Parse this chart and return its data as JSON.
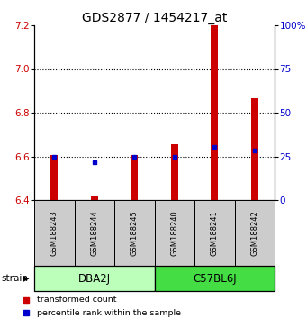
{
  "title": "GDS2877 / 1454217_at",
  "samples": [
    "GSM188243",
    "GSM188244",
    "GSM188245",
    "GSM188240",
    "GSM188241",
    "GSM188242"
  ],
  "red_bar_bottom": 6.4,
  "red_bar_tops": [
    6.605,
    6.415,
    6.605,
    6.655,
    7.225,
    6.865
  ],
  "blue_y": [
    6.6,
    6.575,
    6.6,
    6.6,
    6.645,
    6.625
  ],
  "ylim_left": [
    6.4,
    7.2
  ],
  "ylim_right": [
    0,
    100
  ],
  "yticks_left": [
    6.4,
    6.6,
    6.8,
    7.0,
    7.2
  ],
  "yticks_right": [
    0,
    25,
    50,
    75,
    100
  ],
  "ytick_labels_right": [
    "0",
    "25",
    "50",
    "75",
    "100%"
  ],
  "dotted_lines": [
    6.6,
    6.8,
    7.0
  ],
  "groups": [
    {
      "label": "DBA2J",
      "indices": [
        0,
        1,
        2
      ],
      "color": "#bbffbb"
    },
    {
      "label": "C57BL6J",
      "indices": [
        3,
        4,
        5
      ],
      "color": "#44dd44"
    }
  ],
  "bar_width": 0.18,
  "red_color": "#cc0000",
  "blue_color": "#0000cc",
  "sample_box_color": "#cccccc",
  "title_fontsize": 10,
  "tick_fontsize": 7.5,
  "legend_label_red": "transformed count",
  "legend_label_blue": "percentile rank within the sample",
  "strain_label": "strain"
}
